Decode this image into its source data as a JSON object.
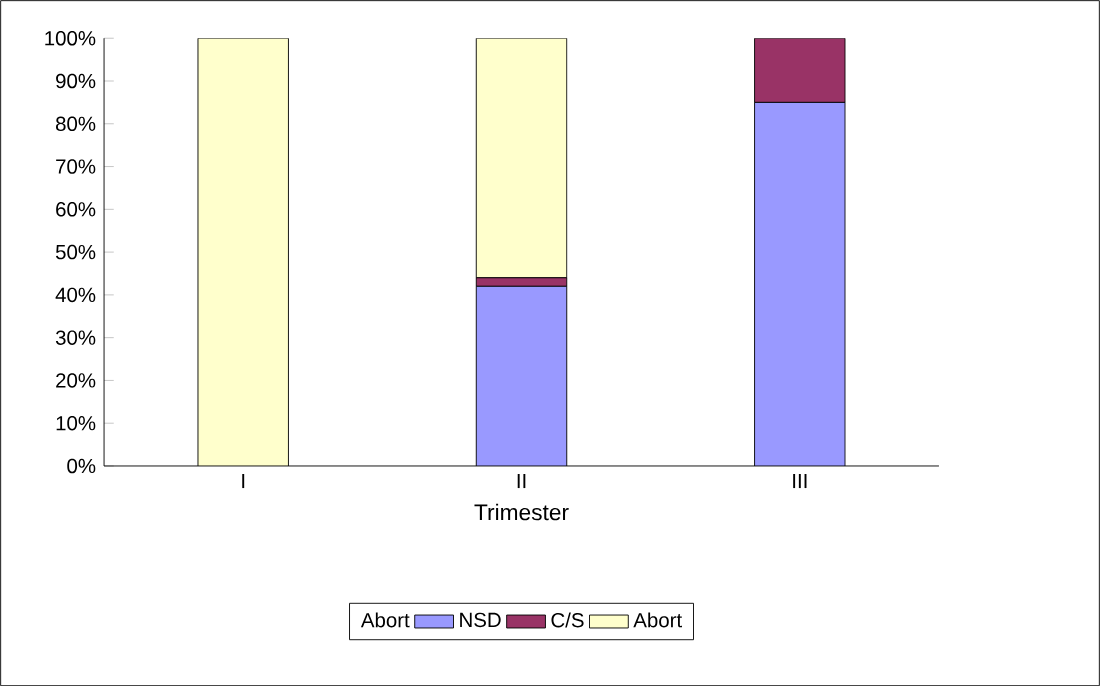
{
  "chart_data": {
    "type": "bar",
    "stacked": true,
    "xlabel": "Trimester",
    "legend_title": "Abort",
    "legend": "bottom",
    "categories": [
      "I",
      "II",
      "III"
    ],
    "series": [
      {
        "name": "NSD",
        "color": "#9999ff",
        "values": [
          0,
          42,
          85
        ]
      },
      {
        "name": "C/S",
        "color": "#993366",
        "values": [
          0,
          2,
          15
        ]
      },
      {
        "name": "Abort",
        "color": "#ffffcc",
        "values": [
          100,
          56,
          0
        ]
      }
    ],
    "ylim": [
      0,
      100
    ],
    "yticks": [
      {
        "value": 0,
        "label": "0%"
      },
      {
        "value": 10,
        "label": "10%"
      },
      {
        "value": 20,
        "label": "20%"
      },
      {
        "value": 30,
        "label": "30%"
      },
      {
        "value": 40,
        "label": "40%"
      },
      {
        "value": 50,
        "label": "50%"
      },
      {
        "value": 60,
        "label": "60%"
      },
      {
        "value": 70,
        "label": "70%"
      },
      {
        "value": 80,
        "label": "80%"
      },
      {
        "value": 90,
        "label": "90%"
      },
      {
        "value": 100,
        "label": "100%"
      }
    ]
  }
}
